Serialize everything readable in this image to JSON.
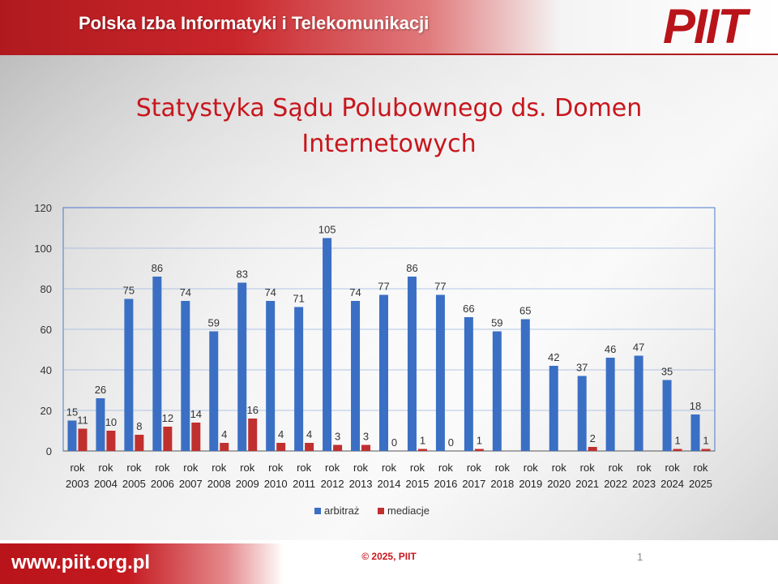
{
  "header": {
    "title": "Polska Izba Informatyki i Telekomunikacji",
    "logo_text": "PIIT"
  },
  "footer": {
    "url": "www.piit.org.pl",
    "copyright": "© 2025, PIIT",
    "page_number": "1"
  },
  "colors": {
    "brand_red": "#c8161d",
    "arbitraz_blue": "#3a6fc4",
    "mediacje_red": "#c0302f"
  },
  "chart_data": {
    "type": "bar",
    "title": "Statystyka Sądu Polubownego ds. Domen Internetowych",
    "title_lines": [
      "Statystyka Sądu Polubownego ds. Domen",
      "Internetowych"
    ],
    "categories": [
      [
        "rok",
        "2003"
      ],
      [
        "rok",
        "2004"
      ],
      [
        "rok",
        "2005"
      ],
      [
        "rok",
        "2006"
      ],
      [
        "rok",
        "2007"
      ],
      [
        "rok",
        "2008"
      ],
      [
        "rok",
        "2009"
      ],
      [
        "rok",
        "2010"
      ],
      [
        "rok",
        "2011"
      ],
      [
        "rok",
        "2012"
      ],
      [
        "rok",
        "2013"
      ],
      [
        "rok",
        "2014"
      ],
      [
        "rok",
        "2015"
      ],
      [
        "rok",
        "2016"
      ],
      [
        "rok",
        "2017"
      ],
      [
        "rok",
        "2018"
      ],
      [
        "rok",
        "2019"
      ],
      [
        "rok",
        "2020"
      ],
      [
        "rok",
        "2021"
      ],
      [
        "rok",
        "2022"
      ],
      [
        "rok",
        "2023"
      ],
      [
        "rok",
        "2024"
      ],
      [
        "rok",
        "2025"
      ]
    ],
    "series": [
      {
        "name": "arbitraż",
        "color": "#3a6fc4",
        "values": [
          15,
          26,
          75,
          86,
          74,
          59,
          83,
          74,
          71,
          105,
          74,
          77,
          86,
          77,
          66,
          59,
          65,
          42,
          37,
          46,
          47,
          35,
          18
        ],
        "labels": [
          "15",
          "26",
          "75",
          "86",
          "74",
          "59",
          "83",
          "74",
          "71",
          "105",
          "74",
          "77",
          "86",
          "77",
          "66",
          "59",
          "65",
          "42",
          "37",
          "46",
          "47",
          "35",
          "18"
        ]
      },
      {
        "name": "mediacje",
        "color": "#c0302f",
        "values": [
          11,
          10,
          8,
          12,
          14,
          4,
          16,
          4,
          4,
          3,
          3,
          0,
          1,
          0,
          1,
          null,
          null,
          null,
          2,
          null,
          null,
          1,
          1
        ],
        "labels": [
          "11",
          "10",
          "8",
          "12",
          "14",
          "4",
          "16",
          "4",
          "4",
          "3",
          "3",
          "0",
          "1",
          "0",
          "1",
          "",
          "",
          "",
          "2",
          "",
          "",
          "1",
          "1"
        ]
      }
    ],
    "ylim": [
      0,
      120
    ],
    "yticks": [
      "0",
      "20",
      "40",
      "60",
      "80",
      "100",
      "120"
    ],
    "grid": true,
    "legend": "bottom"
  }
}
